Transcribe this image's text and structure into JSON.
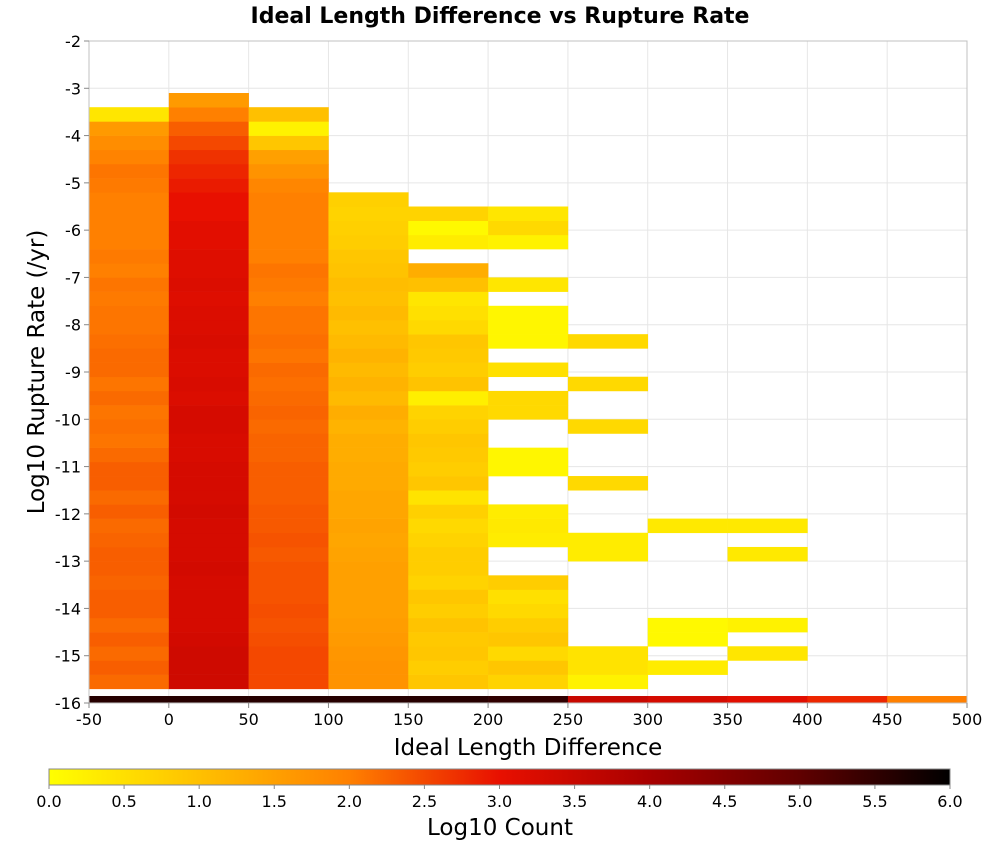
{
  "chart_data": {
    "type": "heatmap",
    "title": "Ideal Length Difference vs Rupture Rate",
    "xlabel": "Ideal Length Difference",
    "ylabel": "Log10 Rupture Rate (/yr)",
    "colorbar_label": "Log10 Count",
    "xlim": [
      -50,
      500
    ],
    "ylim": [
      -16,
      -2
    ],
    "x_ticks": [
      "-50",
      "0",
      "50",
      "100",
      "150",
      "200",
      "250",
      "300",
      "350",
      "400",
      "450",
      "500"
    ],
    "y_ticks": [
      "-2",
      "-3",
      "-4",
      "-5",
      "-6",
      "-7",
      "-8",
      "-9",
      "-10",
      "-11",
      "-12",
      "-13",
      "-14",
      "-15",
      "-16"
    ],
    "colorbar_ticks": [
      "0.0",
      "0.5",
      "1.0",
      "1.5",
      "2.0",
      "2.5",
      "3.0",
      "3.5",
      "4.0",
      "4.5",
      "5.0",
      "5.5",
      "6.0"
    ],
    "colorbar_range": [
      0,
      6
    ],
    "x_bin_width": 50,
    "y_bin_height": 0.3,
    "colormap_stops": [
      {
        "v": 0.0,
        "color": "#ffff00"
      },
      {
        "v": 1.0,
        "color": "#ffc000"
      },
      {
        "v": 2.0,
        "color": "#ff8000"
      },
      {
        "v": 3.0,
        "color": "#e81000"
      },
      {
        "v": 4.0,
        "color": "#a80000"
      },
      {
        "v": 5.0,
        "color": "#600000"
      },
      {
        "v": 6.0,
        "color": "#000000"
      }
    ],
    "grid": true,
    "columns": [
      {
        "x0": -50,
        "rows": [
          [
            -16.0,
            5.6
          ],
          [
            -15.7,
            2.2
          ],
          [
            -15.4,
            2.3
          ],
          [
            -15.1,
            2.2
          ],
          [
            -14.8,
            2.3
          ],
          [
            -14.5,
            2.2
          ],
          [
            -14.2,
            2.3
          ],
          [
            -13.9,
            2.3
          ],
          [
            -13.6,
            2.25
          ],
          [
            -13.3,
            2.3
          ],
          [
            -13.0,
            2.3
          ],
          [
            -12.7,
            2.25
          ],
          [
            -12.4,
            2.2
          ],
          [
            -12.1,
            2.3
          ],
          [
            -11.8,
            2.2
          ],
          [
            -11.5,
            2.3
          ],
          [
            -11.2,
            2.3
          ],
          [
            -10.9,
            2.2
          ],
          [
            -10.6,
            2.1
          ],
          [
            -10.3,
            2.15
          ],
          [
            -10.0,
            2.1
          ],
          [
            -9.7,
            2.2
          ],
          [
            -9.4,
            2.1
          ],
          [
            -9.1,
            2.2
          ],
          [
            -8.8,
            2.2
          ],
          [
            -8.5,
            2.15
          ],
          [
            -8.2,
            2.1
          ],
          [
            -7.9,
            2.1
          ],
          [
            -7.6,
            2.05
          ],
          [
            -7.3,
            2.1
          ],
          [
            -7.0,
            2.0
          ],
          [
            -6.7,
            2.05
          ],
          [
            -6.4,
            2.0
          ],
          [
            -6.1,
            2.0
          ],
          [
            -5.8,
            2.0
          ],
          [
            -5.5,
            2.0
          ],
          [
            -5.2,
            2.05
          ],
          [
            -4.9,
            2.1
          ],
          [
            -4.6,
            1.95
          ],
          [
            -4.3,
            1.8
          ],
          [
            -4.0,
            1.6
          ],
          [
            -3.7,
            0.4
          ]
        ]
      },
      {
        "x0": 0,
        "rows": [
          [
            -16.0,
            5.6
          ],
          [
            -15.7,
            3.4
          ],
          [
            -15.4,
            3.4
          ],
          [
            -15.1,
            3.4
          ],
          [
            -14.8,
            3.35
          ],
          [
            -14.5,
            3.3
          ],
          [
            -14.2,
            3.3
          ],
          [
            -13.9,
            3.3
          ],
          [
            -13.6,
            3.3
          ],
          [
            -13.3,
            3.35
          ],
          [
            -13.0,
            3.3
          ],
          [
            -12.7,
            3.3
          ],
          [
            -12.4,
            3.3
          ],
          [
            -12.1,
            3.35
          ],
          [
            -11.8,
            3.3
          ],
          [
            -11.5,
            3.3
          ],
          [
            -11.2,
            3.3
          ],
          [
            -10.9,
            3.25
          ],
          [
            -10.6,
            3.25
          ],
          [
            -10.3,
            3.3
          ],
          [
            -10.0,
            3.3
          ],
          [
            -9.7,
            3.2
          ],
          [
            -9.4,
            3.25
          ],
          [
            -9.1,
            3.2
          ],
          [
            -8.8,
            3.2
          ],
          [
            -8.5,
            3.25
          ],
          [
            -8.2,
            3.2
          ],
          [
            -7.9,
            3.2
          ],
          [
            -7.6,
            3.15
          ],
          [
            -7.3,
            3.2
          ],
          [
            -7.0,
            3.15
          ],
          [
            -6.7,
            3.15
          ],
          [
            -6.4,
            3.1
          ],
          [
            -6.1,
            3.1
          ],
          [
            -5.8,
            3.0
          ],
          [
            -5.5,
            3.0
          ],
          [
            -5.2,
            2.9
          ],
          [
            -4.9,
            2.8
          ],
          [
            -4.6,
            2.7
          ],
          [
            -4.3,
            2.5
          ],
          [
            -4.0,
            2.3
          ],
          [
            -3.7,
            2.0
          ],
          [
            -3.4,
            1.6
          ]
        ]
      },
      {
        "x0": 50,
        "rows": [
          [
            -16.0,
            5.6
          ],
          [
            -15.7,
            2.5
          ],
          [
            -15.4,
            2.5
          ],
          [
            -15.1,
            2.5
          ],
          [
            -14.8,
            2.45
          ],
          [
            -14.5,
            2.4
          ],
          [
            -14.2,
            2.45
          ],
          [
            -13.9,
            2.4
          ],
          [
            -13.6,
            2.4
          ],
          [
            -13.3,
            2.4
          ],
          [
            -13.0,
            2.35
          ],
          [
            -12.7,
            2.4
          ],
          [
            -12.4,
            2.35
          ],
          [
            -12.1,
            2.35
          ],
          [
            -11.8,
            2.3
          ],
          [
            -11.5,
            2.3
          ],
          [
            -11.2,
            2.3
          ],
          [
            -10.9,
            2.25
          ],
          [
            -10.6,
            2.25
          ],
          [
            -10.3,
            2.2
          ],
          [
            -10.0,
            2.25
          ],
          [
            -9.7,
            2.2
          ],
          [
            -9.4,
            2.15
          ],
          [
            -9.1,
            2.2
          ],
          [
            -8.8,
            2.1
          ],
          [
            -8.5,
            2.15
          ],
          [
            -8.2,
            2.1
          ],
          [
            -7.9,
            2.1
          ],
          [
            -7.6,
            2.0
          ],
          [
            -7.3,
            2.05
          ],
          [
            -7.0,
            2.1
          ],
          [
            -6.7,
            2.0
          ],
          [
            -6.4,
            2.0
          ],
          [
            -6.1,
            2.0
          ],
          [
            -5.8,
            2.0
          ],
          [
            -5.5,
            2.0
          ],
          [
            -5.2,
            1.9
          ],
          [
            -4.9,
            1.7
          ],
          [
            -4.6,
            1.5
          ],
          [
            -4.3,
            0.9
          ],
          [
            -4.0,
            0.2
          ],
          [
            -3.7,
            1.0
          ]
        ]
      },
      {
        "x0": 100,
        "rows": [
          [
            -16.0,
            5.6
          ],
          [
            -15.7,
            1.7
          ],
          [
            -15.4,
            1.7
          ],
          [
            -15.1,
            1.65
          ],
          [
            -14.8,
            1.6
          ],
          [
            -14.5,
            1.55
          ],
          [
            -14.2,
            1.5
          ],
          [
            -13.9,
            1.5
          ],
          [
            -13.6,
            1.5
          ],
          [
            -13.3,
            1.5
          ],
          [
            -13.0,
            1.45
          ],
          [
            -12.7,
            1.4
          ],
          [
            -12.4,
            1.45
          ],
          [
            -12.1,
            1.4
          ],
          [
            -11.8,
            1.4
          ],
          [
            -11.5,
            1.35
          ],
          [
            -11.2,
            1.35
          ],
          [
            -10.9,
            1.3
          ],
          [
            -10.6,
            1.3
          ],
          [
            -10.3,
            1.2
          ],
          [
            -10.0,
            1.3
          ],
          [
            -9.7,
            1.1
          ],
          [
            -9.4,
            1.2
          ],
          [
            -9.1,
            1.1
          ],
          [
            -8.8,
            1.2
          ],
          [
            -8.5,
            1.1
          ],
          [
            -8.2,
            1.0
          ],
          [
            -7.9,
            1.1
          ],
          [
            -7.6,
            1.0
          ],
          [
            -7.3,
            1.05
          ],
          [
            -7.0,
            0.95
          ],
          [
            -6.7,
            0.9
          ],
          [
            -6.4,
            0.8
          ],
          [
            -6.1,
            0.75
          ],
          [
            -5.8,
            0.7
          ],
          [
            -5.5,
            0.75
          ]
        ]
      },
      {
        "x0": 150,
        "rows": [
          [
            -16.0,
            5.6
          ],
          [
            -15.7,
            0.9
          ],
          [
            -15.4,
            0.8
          ],
          [
            -15.1,
            0.9
          ],
          [
            -14.8,
            0.85
          ],
          [
            -14.5,
            0.95
          ],
          [
            -14.2,
            0.8
          ],
          [
            -13.9,
            0.9
          ],
          [
            -13.6,
            0.7
          ],
          [
            -13.3,
            0.8
          ],
          [
            -13.0,
            0.8
          ],
          [
            -12.7,
            0.7
          ],
          [
            -12.4,
            0.6
          ],
          [
            -12.1,
            0.75
          ],
          [
            -11.8,
            0.45
          ],
          [
            -11.5,
            0.9
          ],
          [
            -11.2,
            0.8
          ],
          [
            -10.9,
            0.85
          ],
          [
            -10.6,
            0.9
          ],
          [
            -10.3,
            0.8
          ],
          [
            -10.0,
            0.7
          ],
          [
            -9.7,
            0.25
          ],
          [
            -9.4,
            0.95
          ],
          [
            -9.1,
            0.8
          ],
          [
            -8.8,
            0.85
          ],
          [
            -8.5,
            0.9
          ],
          [
            -8.2,
            0.6
          ],
          [
            -7.9,
            0.5
          ],
          [
            -7.6,
            0.4
          ],
          [
            -7.3,
            1.0
          ],
          [
            -7.0,
            1.3
          ],
          [
            -6.4,
            0.3
          ],
          [
            -6.1,
            0.1
          ],
          [
            -5.8,
            0.7
          ]
        ]
      },
      {
        "x0": 200,
        "rows": [
          [
            -16.0,
            5.5
          ],
          [
            -15.7,
            0.7
          ],
          [
            -15.4,
            0.9
          ],
          [
            -15.1,
            0.6
          ],
          [
            -14.8,
            0.9
          ],
          [
            -14.5,
            0.8
          ],
          [
            -14.2,
            0.6
          ],
          [
            -13.9,
            0.5
          ],
          [
            -13.6,
            0.8
          ],
          [
            -12.7,
            0.3
          ],
          [
            -12.4,
            0.35
          ],
          [
            -12.1,
            0.3
          ],
          [
            -11.2,
            0.15
          ],
          [
            -10.9,
            0.15
          ],
          [
            -10.0,
            0.6
          ],
          [
            -9.7,
            0.6
          ],
          [
            -9.1,
            0.5
          ],
          [
            -8.5,
            0.15
          ],
          [
            -8.2,
            0.15
          ],
          [
            -7.9,
            0.15
          ],
          [
            -7.3,
            0.4
          ],
          [
            -6.4,
            0.2
          ],
          [
            -6.1,
            0.6
          ],
          [
            -5.8,
            0.4
          ]
        ]
      },
      {
        "x0": 250,
        "rows": [
          [
            -16.0,
            3.5
          ],
          [
            -15.7,
            0.2
          ],
          [
            -15.4,
            0.45
          ],
          [
            -15.1,
            0.45
          ],
          [
            -13.0,
            0.3
          ],
          [
            -12.7,
            0.3
          ],
          [
            -11.5,
            0.6
          ],
          [
            -10.3,
            0.6
          ],
          [
            -9.4,
            0.6
          ],
          [
            -8.5,
            0.6
          ]
        ]
      },
      {
        "x0": 300,
        "rows": [
          [
            -16.0,
            3.3
          ],
          [
            -15.4,
            0.3
          ],
          [
            -14.8,
            0.1
          ],
          [
            -14.5,
            0.1
          ],
          [
            -12.4,
            0.35
          ]
        ]
      },
      {
        "x0": 350,
        "rows": [
          [
            -16.0,
            3.1
          ],
          [
            -15.1,
            0.4
          ],
          [
            -14.5,
            0.2
          ],
          [
            -13.0,
            0.35
          ],
          [
            -12.4,
            0.35
          ]
        ]
      },
      {
        "x0": 400,
        "rows": [
          [
            -16.0,
            2.8
          ]
        ]
      },
      {
        "x0": 450,
        "rows": [
          [
            -16.0,
            2.0
          ]
        ]
      }
    ]
  }
}
